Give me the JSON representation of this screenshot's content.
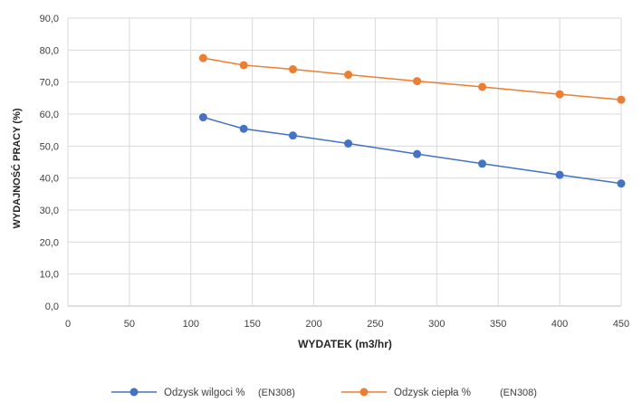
{
  "chart_data": {
    "type": "line",
    "xlabel": "WYDATEK  (m3/hr)",
    "ylabel": "WYDAJNOŚĆ PRACY (%)",
    "xlim": [
      0,
      450
    ],
    "ylim": [
      0,
      90
    ],
    "x_ticks": [
      "0",
      "50",
      "100",
      "150",
      "200",
      "250",
      "300",
      "350",
      "400",
      "450"
    ],
    "y_ticks": [
      "0,0",
      "10,0",
      "20,0",
      "30,0",
      "40,0",
      "50,0",
      "60,0",
      "70,0",
      "80,0",
      "90,0"
    ],
    "grid": true,
    "legend_position": "bottom",
    "x": [
      110,
      143,
      183,
      228,
      284,
      337,
      400,
      450
    ],
    "series": [
      {
        "name": "Odzysk wilgoci %",
        "note": "(EN308)",
        "color": "#4472C4",
        "values": [
          59.0,
          55.4,
          53.3,
          50.8,
          47.5,
          44.5,
          41.0,
          38.3
        ]
      },
      {
        "name": "Odzysk ciepła %",
        "note": "(EN308)",
        "color": "#ED7D31",
        "values": [
          77.5,
          75.3,
          74.0,
          72.3,
          70.3,
          68.5,
          66.2,
          64.5
        ]
      }
    ]
  }
}
